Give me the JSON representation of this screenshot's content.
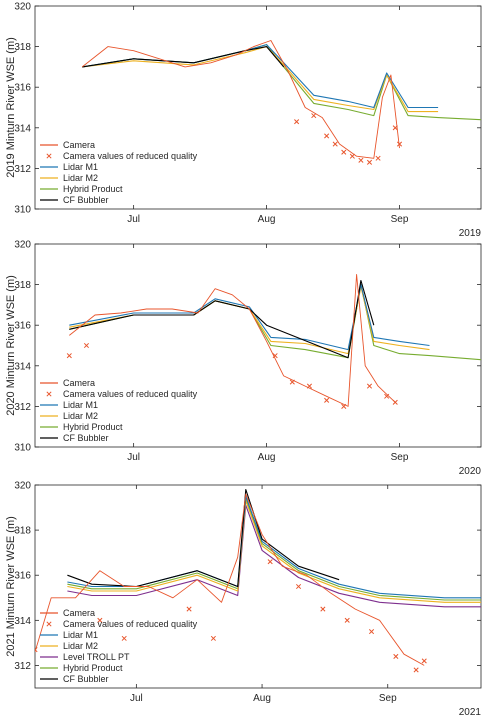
{
  "chart_data": [
    {
      "type": "line",
      "ylabel": "2019 Minturn River WSE (m)",
      "year_label": "2019",
      "ylim": [
        310,
        320
      ],
      "yticks": [
        310,
        312,
        314,
        316,
        318,
        320
      ],
      "xlim": [
        "2019-06-08",
        "2019-09-20"
      ],
      "xticks": [
        {
          "date": "2019-07-01",
          "label": "Jul"
        },
        {
          "date": "2019-08-01",
          "label": "Aug"
        },
        {
          "date": "2019-09-01",
          "label": "Sep"
        }
      ],
      "legend_position": "bottom-left",
      "legend": [
        "Camera",
        "Camera values of reduced quality",
        "Lidar M1",
        "Lidar M2",
        "Hybrid Product",
        "CF Bubbler"
      ],
      "series": [
        {
          "name": "Camera",
          "color": "#e8552c",
          "x": [
            "2019-06-19",
            "2019-06-25",
            "2019-07-01",
            "2019-07-07",
            "2019-07-13",
            "2019-07-19",
            "2019-07-25",
            "2019-07-29",
            "2019-08-02",
            "2019-08-06",
            "2019-08-10",
            "2019-08-14",
            "2019-08-18",
            "2019-08-22",
            "2019-08-26",
            "2019-08-28",
            "2019-08-30",
            "2019-09-01"
          ],
          "y": [
            317.0,
            318.0,
            317.8,
            317.4,
            317.0,
            317.2,
            317.6,
            318.0,
            318.3,
            316.8,
            315.0,
            314.5,
            313.2,
            312.6,
            312.5,
            315.5,
            316.6,
            313.0
          ]
        },
        {
          "name": "Camera values of reduced quality",
          "color": "#e8552c",
          "x": [
            "2019-08-08",
            "2019-08-12",
            "2019-08-15",
            "2019-08-17",
            "2019-08-19",
            "2019-08-21",
            "2019-08-23",
            "2019-08-25",
            "2019-08-27",
            "2019-08-31",
            "2019-09-01"
          ],
          "y": [
            314.3,
            314.6,
            313.6,
            313.2,
            312.8,
            312.6,
            312.4,
            312.3,
            312.5,
            314.0,
            313.2
          ]
        },
        {
          "name": "Lidar M1",
          "color": "#1f77b4",
          "x": [
            "2019-06-19",
            "2019-07-01",
            "2019-07-15",
            "2019-07-27",
            "2019-08-01",
            "2019-08-05",
            "2019-08-12",
            "2019-08-20",
            "2019-08-26",
            "2019-08-29",
            "2019-09-03",
            "2019-09-10"
          ],
          "y": [
            317.0,
            317.4,
            317.2,
            317.8,
            318.1,
            317.2,
            315.6,
            315.3,
            315.0,
            316.7,
            315.0,
            315.0
          ]
        },
        {
          "name": "Lidar M2",
          "color": "#edb120",
          "x": [
            "2019-06-19",
            "2019-07-01",
            "2019-07-15",
            "2019-07-27",
            "2019-08-01",
            "2019-08-05",
            "2019-08-12",
            "2019-08-20",
            "2019-08-26",
            "2019-08-29",
            "2019-09-03",
            "2019-09-10"
          ],
          "y": [
            317.0,
            317.3,
            317.1,
            317.7,
            318.0,
            317.1,
            315.4,
            315.1,
            314.9,
            316.6,
            314.8,
            314.8
          ]
        },
        {
          "name": "Hybrid Product",
          "color": "#77ac30",
          "x": [
            "2019-06-19",
            "2019-07-01",
            "2019-07-15",
            "2019-07-27",
            "2019-08-01",
            "2019-08-05",
            "2019-08-12",
            "2019-08-20",
            "2019-08-26",
            "2019-08-29",
            "2019-09-03",
            "2019-09-10",
            "2019-09-20"
          ],
          "y": [
            317.0,
            317.4,
            317.2,
            317.8,
            318.1,
            317.0,
            315.2,
            314.9,
            314.6,
            316.6,
            314.6,
            314.5,
            314.4
          ]
        },
        {
          "name": "CF Bubbler",
          "color": "#000000",
          "x": [
            "2019-06-19",
            "2019-07-01",
            "2019-07-15",
            "2019-07-27",
            "2019-08-01",
            "2019-08-05"
          ],
          "y": [
            317.0,
            317.4,
            317.2,
            317.8,
            318.0,
            317.0
          ]
        }
      ]
    },
    {
      "type": "line",
      "ylabel": "2020 Minturn River WSE (m)",
      "year_label": "2020",
      "ylim": [
        310,
        320
      ],
      "yticks": [
        310,
        312,
        314,
        316,
        318,
        320
      ],
      "xlim": [
        "2020-06-08",
        "2020-09-20"
      ],
      "xticks": [
        {
          "date": "2020-07-01",
          "label": "Jul"
        },
        {
          "date": "2020-08-01",
          "label": "Aug"
        },
        {
          "date": "2020-09-01",
          "label": "Sep"
        }
      ],
      "legend_position": "bottom-left",
      "legend": [
        "Camera",
        "Camera values of reduced quality",
        "Lidar M1",
        "Lidar M2",
        "Hybrid Product",
        "CF Bubbler"
      ],
      "series": [
        {
          "name": "Camera",
          "color": "#e8552c",
          "x": [
            "2020-06-16",
            "2020-06-22",
            "2020-06-28",
            "2020-07-04",
            "2020-07-10",
            "2020-07-16",
            "2020-07-20",
            "2020-07-24",
            "2020-07-28",
            "2020-08-01",
            "2020-08-05",
            "2020-08-10",
            "2020-08-15",
            "2020-08-20",
            "2020-08-22",
            "2020-08-24",
            "2020-08-27",
            "2020-08-31"
          ],
          "y": [
            315.5,
            316.5,
            316.6,
            316.8,
            316.8,
            316.6,
            317.8,
            317.5,
            316.8,
            315.2,
            313.5,
            313.0,
            312.5,
            312.0,
            318.5,
            314.0,
            313.0,
            312.2
          ]
        },
        {
          "name": "Camera values of reduced quality",
          "color": "#e8552c",
          "x": [
            "2020-06-16",
            "2020-06-20",
            "2020-08-03",
            "2020-08-07",
            "2020-08-11",
            "2020-08-15",
            "2020-08-19",
            "2020-08-25",
            "2020-08-29",
            "2020-08-31"
          ],
          "y": [
            314.5,
            315.0,
            314.5,
            313.2,
            313.0,
            312.3,
            312.0,
            313.0,
            312.5,
            312.2
          ]
        },
        {
          "name": "Lidar M1",
          "color": "#1f77b4",
          "x": [
            "2020-06-16",
            "2020-07-01",
            "2020-07-15",
            "2020-07-20",
            "2020-07-28",
            "2020-08-02",
            "2020-08-10",
            "2020-08-20",
            "2020-08-23",
            "2020-08-26",
            "2020-09-01",
            "2020-09-08"
          ],
          "y": [
            316.0,
            316.6,
            316.6,
            317.3,
            316.9,
            315.4,
            315.3,
            314.8,
            318.0,
            315.4,
            315.2,
            315.0
          ]
        },
        {
          "name": "Lidar M2",
          "color": "#edb120",
          "x": [
            "2020-06-16",
            "2020-07-01",
            "2020-07-15",
            "2020-07-20",
            "2020-07-28",
            "2020-08-02",
            "2020-08-10",
            "2020-08-20",
            "2020-08-23",
            "2020-08-26",
            "2020-09-01",
            "2020-09-08"
          ],
          "y": [
            315.9,
            316.5,
            316.5,
            317.2,
            316.8,
            315.2,
            315.1,
            314.6,
            317.9,
            315.2,
            315.0,
            314.8
          ]
        },
        {
          "name": "Hybrid Product",
          "color": "#77ac30",
          "x": [
            "2020-06-16",
            "2020-07-01",
            "2020-07-15",
            "2020-07-20",
            "2020-07-28",
            "2020-08-02",
            "2020-08-10",
            "2020-08-20",
            "2020-08-23",
            "2020-08-26",
            "2020-09-01",
            "2020-09-08",
            "2020-09-20"
          ],
          "y": [
            315.8,
            316.5,
            316.5,
            317.2,
            316.8,
            315.0,
            314.8,
            314.4,
            318.0,
            315.0,
            314.6,
            314.5,
            314.3
          ]
        },
        {
          "name": "CF Bubbler",
          "color": "#000000",
          "x": [
            "2020-06-16",
            "2020-07-01",
            "2020-07-15",
            "2020-07-20",
            "2020-07-28",
            "2020-08-01",
            "2020-08-20",
            "2020-08-23",
            "2020-08-26"
          ],
          "y": [
            315.8,
            316.5,
            316.5,
            317.2,
            316.8,
            316.0,
            314.4,
            318.2,
            316.0
          ]
        }
      ]
    },
    {
      "type": "line",
      "ylabel": "2021 Minturn River WSE (m)",
      "year_label": "2021",
      "ylim": [
        311,
        320
      ],
      "yticks": [
        312,
        314,
        316,
        318,
        320
      ],
      "xlim": [
        "2021-06-06",
        "2021-09-24"
      ],
      "xticks": [
        {
          "date": "2021-07-01",
          "label": "Jul"
        },
        {
          "date": "2021-08-01",
          "label": "Aug"
        },
        {
          "date": "2021-09-01",
          "label": "Sep"
        }
      ],
      "legend_position": "bottom-left",
      "legend": [
        "Camera",
        "Camera values of reduced quality",
        "Lidar M1",
        "Lidar M2",
        "Level TROLL PT",
        "Hybrid Product",
        "CF Bubbler"
      ],
      "series": [
        {
          "name": "Camera",
          "color": "#e8552c",
          "x": [
            "2021-06-06",
            "2021-06-10",
            "2021-06-16",
            "2021-06-22",
            "2021-06-28",
            "2021-07-04",
            "2021-07-10",
            "2021-07-16",
            "2021-07-22",
            "2021-07-26",
            "2021-07-28",
            "2021-08-01",
            "2021-08-06",
            "2021-08-12",
            "2021-08-18",
            "2021-08-24",
            "2021-08-30",
            "2021-09-05",
            "2021-09-10"
          ],
          "y": [
            312.6,
            315.0,
            315.0,
            316.2,
            315.5,
            315.5,
            315.0,
            315.8,
            314.8,
            316.8,
            319.6,
            317.8,
            316.4,
            316.0,
            315.2,
            314.5,
            314.0,
            312.5,
            312.0
          ]
        },
        {
          "name": "Camera values of reduced quality",
          "color": "#e8552c",
          "x": [
            "2021-06-06",
            "2021-06-22",
            "2021-06-28",
            "2021-07-14",
            "2021-07-20",
            "2021-08-03",
            "2021-08-10",
            "2021-08-16",
            "2021-08-22",
            "2021-08-28",
            "2021-09-03",
            "2021-09-08",
            "2021-09-10"
          ],
          "y": [
            312.7,
            314.0,
            313.2,
            314.5,
            313.2,
            316.6,
            315.5,
            314.5,
            314.0,
            313.5,
            312.4,
            311.8,
            312.2
          ]
        },
        {
          "name": "Lidar M1",
          "color": "#1f77b4",
          "x": [
            "2021-06-14",
            "2021-06-20",
            "2021-07-01",
            "2021-07-16",
            "2021-07-26",
            "2021-07-28",
            "2021-08-01",
            "2021-08-10",
            "2021-08-20",
            "2021-08-30",
            "2021-09-15",
            "2021-09-24"
          ],
          "y": [
            315.7,
            315.5,
            315.5,
            316.2,
            315.5,
            319.5,
            317.5,
            316.3,
            315.6,
            315.2,
            315.0,
            315.0
          ]
        },
        {
          "name": "Lidar M2",
          "color": "#edb120",
          "x": [
            "2021-06-14",
            "2021-06-20",
            "2021-07-01",
            "2021-07-16",
            "2021-07-26",
            "2021-07-28",
            "2021-08-01",
            "2021-08-10",
            "2021-08-20",
            "2021-08-30",
            "2021-09-15",
            "2021-09-24"
          ],
          "y": [
            315.5,
            315.3,
            315.3,
            316.0,
            315.3,
            319.3,
            317.3,
            316.1,
            315.4,
            315.0,
            314.8,
            314.8
          ]
        },
        {
          "name": "Level TROLL PT",
          "color": "#7e2f8e",
          "x": [
            "2021-06-14",
            "2021-06-20",
            "2021-07-01",
            "2021-07-16",
            "2021-07-26",
            "2021-07-28",
            "2021-08-01",
            "2021-08-10",
            "2021-08-20",
            "2021-08-30",
            "2021-09-15",
            "2021-09-24"
          ],
          "y": [
            315.3,
            315.1,
            315.1,
            315.8,
            315.1,
            319.1,
            317.1,
            315.9,
            315.2,
            314.8,
            314.6,
            314.6
          ]
        },
        {
          "name": "Hybrid Product",
          "color": "#77ac30",
          "x": [
            "2021-06-14",
            "2021-06-20",
            "2021-07-01",
            "2021-07-16",
            "2021-07-26",
            "2021-07-28",
            "2021-08-01",
            "2021-08-10",
            "2021-08-20",
            "2021-08-30",
            "2021-09-15",
            "2021-09-24"
          ],
          "y": [
            315.6,
            315.4,
            315.4,
            316.1,
            315.4,
            319.4,
            317.4,
            316.2,
            315.5,
            315.1,
            314.9,
            314.9
          ]
        },
        {
          "name": "CF Bubbler",
          "color": "#000000",
          "x": [
            "2021-06-14",
            "2021-06-20",
            "2021-07-01",
            "2021-07-16",
            "2021-07-26",
            "2021-07-28",
            "2021-08-01",
            "2021-08-10",
            "2021-08-20"
          ],
          "y": [
            316.0,
            315.6,
            315.5,
            316.2,
            315.5,
            319.8,
            317.6,
            316.4,
            315.8
          ]
        }
      ]
    }
  ]
}
